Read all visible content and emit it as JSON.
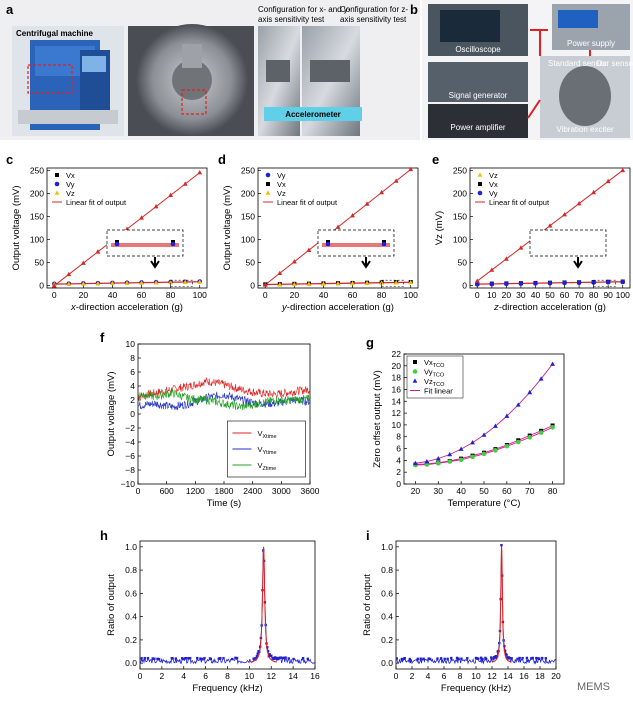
{
  "panels": {
    "a": {
      "letter": "a",
      "centrifuge_label": "Centrifugal machine",
      "config_xy_label_1": "Configuration for x- and y-",
      "config_xy_label_2": "axis sensitivity test",
      "config_z_label_1": "Configuration for z-",
      "config_z_label_2": "axis sensitivity test",
      "accelerometer_label": "Accelerometer"
    },
    "b": {
      "letter": "b",
      "oscilloscope": "Oscilloscope",
      "power_supply": "Power supply",
      "signal_generator": "Signal generator",
      "power_amplifier": "Power amplifier",
      "vibration_exciter": "Vibration exciter",
      "standard_sensor": "Standard sensor",
      "our_sensor": "Our sensor"
    }
  },
  "watermark": "MEMS",
  "colors": {
    "fit_red": "#d62728",
    "vx_black": "#000000",
    "vy_blue": "#1f1fd6",
    "vz_yellow": "#f0c000",
    "time_red": "#e02020",
    "time_blue": "#2030c0",
    "time_green": "#20a020",
    "tco_blue": "#2020d0",
    "tco_green": "#40d040",
    "tco_fit": "#d0208a",
    "freq_blue": "#2020d0",
    "freq_red": "#e02020"
  },
  "chart_data": [
    {
      "id": "c",
      "letter": "c",
      "type": "line",
      "xlabel_prefix": "x",
      "xlabel_suffix": "-direction acceleration (g)",
      "ylabel": "Output voltage (mV)",
      "xlim": [
        -5,
        105
      ],
      "ylim": [
        -5,
        255
      ],
      "xticks": [
        "0",
        "20",
        "40",
        "60",
        "80",
        "100"
      ],
      "yticks": [
        "0",
        "50",
        "100",
        "150",
        "200",
        "250"
      ],
      "legend": [
        "Vx",
        "Vy",
        "Vz",
        "Linear fit of output"
      ],
      "main_series": {
        "name": "Vx",
        "x": [
          0,
          10,
          20,
          30,
          40,
          50,
          60,
          70,
          80,
          90,
          100
        ],
        "y": [
          0,
          24.5,
          49,
          73.5,
          98,
          122.5,
          147,
          171.5,
          196,
          220.5,
          245
        ]
      },
      "cross_series": [
        {
          "name": "Vy",
          "x": [
            0,
            10,
            20,
            30,
            40,
            50,
            60,
            70,
            80,
            90,
            100
          ],
          "y": [
            4,
            4.5,
            5,
            5.5,
            6,
            6.5,
            7,
            7.5,
            8,
            8.5,
            9
          ]
        },
        {
          "name": "Vz",
          "x": [
            0,
            10,
            20,
            30,
            40,
            50,
            60,
            70,
            80,
            90,
            100
          ],
          "y": [
            3,
            3.5,
            4,
            4.5,
            5,
            5.5,
            6,
            6.5,
            7,
            7.5,
            8
          ]
        }
      ],
      "fit": {
        "x": [
          0,
          100
        ],
        "y": [
          0,
          245
        ]
      }
    },
    {
      "id": "d",
      "letter": "d",
      "type": "line",
      "xlabel_prefix": "y",
      "xlabel_suffix": "-direction acceleration (g)",
      "ylabel": "Output voltage (mV)",
      "xlim": [
        -5,
        105
      ],
      "ylim": [
        -5,
        255
      ],
      "xticks": [
        "0",
        "20",
        "40",
        "60",
        "80",
        "100"
      ],
      "yticks": [
        "0",
        "50",
        "100",
        "150",
        "200",
        "250"
      ],
      "legend": [
        "Vy",
        "Vx",
        "Vz",
        "Linear fit of output"
      ],
      "main_series": {
        "name": "Vy",
        "x": [
          0,
          10,
          20,
          30,
          40,
          50,
          60,
          70,
          80,
          90,
          100
        ],
        "y": [
          2,
          27,
          52,
          77,
          102,
          127,
          152,
          177,
          202,
          227,
          252
        ]
      },
      "cross_series": [
        {
          "name": "Vx",
          "x": [
            0,
            10,
            20,
            30,
            40,
            50,
            60,
            70,
            80,
            90,
            100
          ],
          "y": [
            3,
            3.5,
            4,
            4.5,
            5,
            5.5,
            6,
            6.5,
            7,
            7.5,
            8
          ]
        },
        {
          "name": "Vz",
          "x": [
            0,
            10,
            20,
            30,
            40,
            50,
            60,
            70,
            80,
            90,
            100
          ],
          "y": [
            2,
            2.5,
            3,
            3.5,
            4,
            4.5,
            5,
            5.5,
            6,
            6.5,
            7
          ]
        }
      ],
      "fit": {
        "x": [
          0,
          100
        ],
        "y": [
          2,
          252
        ]
      }
    },
    {
      "id": "e",
      "letter": "e",
      "type": "line",
      "xlabel_prefix": "z",
      "xlabel_suffix": "-direction acceleration (g)",
      "ylabel": "Vz (mV)",
      "xlim": [
        -5,
        105
      ],
      "ylim": [
        -5,
        255
      ],
      "xticks": [
        "0",
        "10",
        "20",
        "30",
        "40",
        "50",
        "60",
        "70",
        "80",
        "90",
        "100"
      ],
      "yticks": [
        "0",
        "50",
        "100",
        "150",
        "200",
        "250"
      ],
      "legend": [
        "Vz",
        "Vx",
        "Vy",
        "Linear fit of output"
      ],
      "main_series": {
        "name": "Vz",
        "x": [
          0,
          10,
          20,
          30,
          40,
          50,
          60,
          70,
          80,
          90,
          100
        ],
        "y": [
          10,
          34,
          58,
          82,
          106,
          130,
          154,
          178,
          202,
          226,
          250
        ]
      },
      "cross_series": [
        {
          "name": "Vx",
          "x": [
            0,
            10,
            20,
            30,
            40,
            50,
            60,
            70,
            80,
            90,
            100
          ],
          "y": [
            4,
            4.5,
            5,
            5.5,
            6,
            6.5,
            7,
            7.5,
            8,
            8.5,
            9
          ]
        },
        {
          "name": "Vy",
          "x": [
            0,
            10,
            20,
            30,
            40,
            50,
            60,
            70,
            80,
            90,
            100
          ],
          "y": [
            3,
            3.5,
            4,
            4.5,
            5,
            5.5,
            6,
            6.5,
            7,
            7.5,
            8
          ]
        }
      ],
      "fit": {
        "x": [
          0,
          100
        ],
        "y": [
          10,
          250
        ]
      }
    },
    {
      "id": "f",
      "letter": "f",
      "type": "line",
      "xlabel": "Time (s)",
      "ylabel": "Output voltage (mV)",
      "xlim": [
        0,
        3600
      ],
      "ylim": [
        -10,
        10
      ],
      "xticks": [
        "0",
        "600",
        "1200",
        "1800",
        "2400",
        "3000",
        "3600"
      ],
      "yticks": [
        "−10",
        "−8",
        "−6",
        "−4",
        "−2",
        "0",
        "2",
        "4",
        "6",
        "8",
        "10"
      ],
      "series": [
        {
          "name": "VXtime",
          "base": "V",
          "sub": "Xtime",
          "mean": 3.0,
          "drift": [
            2.5,
            3,
            3.5,
            4,
            4.7,
            4.2,
            3.5,
            3,
            2.8,
            3.2,
            3.5
          ]
        },
        {
          "name": "VYtime",
          "base": "V",
          "sub": "Ytime",
          "mean": 1.5,
          "drift": [
            1.2,
            1.5,
            1,
            1.5,
            2.3,
            2.8,
            2,
            1.5,
            1.5,
            2,
            1.8
          ]
        },
        {
          "name": "VZtime",
          "base": "V",
          "sub": "Ztime",
          "mean": 2.0,
          "drift": [
            2.8,
            2.5,
            3,
            2.2,
            2,
            1.5,
            1,
            1.5,
            2,
            2,
            2.2
          ]
        }
      ]
    },
    {
      "id": "g",
      "letter": "g",
      "type": "scatter",
      "xlabel": "Temperature (°C)",
      "ylabel": "Zero offset output (mV)",
      "xlim": [
        15,
        85
      ],
      "ylim": [
        0,
        22
      ],
      "xticks": [
        "20",
        "30",
        "40",
        "50",
        "60",
        "70",
        "80"
      ],
      "yticks": [
        "0",
        "2",
        "4",
        "6",
        "8",
        "10",
        "12",
        "14",
        "16",
        "18",
        "20",
        "22"
      ],
      "legend": [
        {
          "base": "Vx",
          "sub": "TCO"
        },
        {
          "base": "Vy",
          "sub": "TCO"
        },
        {
          "base": "Vz",
          "sub": "TCO"
        },
        {
          "base": "Fit linear",
          "sub": ""
        }
      ],
      "series": [
        {
          "name": "VxTCO",
          "x": [
            20,
            25,
            30,
            35,
            40,
            45,
            50,
            55,
            60,
            65,
            70,
            75,
            80
          ],
          "y": [
            3.3,
            3.4,
            3.6,
            3.9,
            4.3,
            4.8,
            5.3,
            5.9,
            6.6,
            7.4,
            8.2,
            9.0,
            9.9
          ]
        },
        {
          "name": "VyTCO",
          "x": [
            20,
            25,
            30,
            35,
            40,
            45,
            50,
            55,
            60,
            65,
            70,
            75,
            80
          ],
          "y": [
            3.2,
            3.3,
            3.5,
            3.8,
            4.1,
            4.6,
            5.1,
            5.7,
            6.4,
            7.1,
            7.9,
            8.7,
            9.6
          ]
        },
        {
          "name": "VzTCO",
          "x": [
            20,
            25,
            30,
            35,
            40,
            45,
            50,
            55,
            60,
            65,
            70,
            75,
            80
          ],
          "y": [
            3.5,
            3.8,
            4.3,
            5.0,
            5.9,
            7.0,
            8.3,
            9.8,
            11.5,
            13.4,
            15.5,
            17.8,
            20.3
          ]
        }
      ]
    },
    {
      "id": "h",
      "letter": "h",
      "type": "line",
      "xlabel": "Frequency (kHz)",
      "ylabel": "Ratio of output",
      "xlim": [
        0,
        16
      ],
      "ylim": [
        -0.05,
        1.05
      ],
      "xticks": [
        "0",
        "2",
        "4",
        "6",
        "8",
        "10",
        "12",
        "14",
        "16"
      ],
      "yticks": [
        "0.0",
        "0.2",
        "0.4",
        "0.6",
        "0.8",
        "1.0"
      ],
      "peak_khz": 11.3,
      "peak_value": 1.0
    },
    {
      "id": "i",
      "letter": "i",
      "type": "line",
      "xlabel": "Frequency (kHz)",
      "ylabel": "Ratio of output",
      "xlim": [
        0,
        20
      ],
      "ylim": [
        -0.05,
        1.05
      ],
      "xticks": [
        "0",
        "2",
        "4",
        "6",
        "8",
        "10",
        "12",
        "14",
        "16",
        "18",
        "20"
      ],
      "yticks": [
        "0.0",
        "0.2",
        "0.4",
        "0.6",
        "0.8",
        "1.0"
      ],
      "peak_khz": 13.2,
      "peak_value": 1.0
    }
  ]
}
